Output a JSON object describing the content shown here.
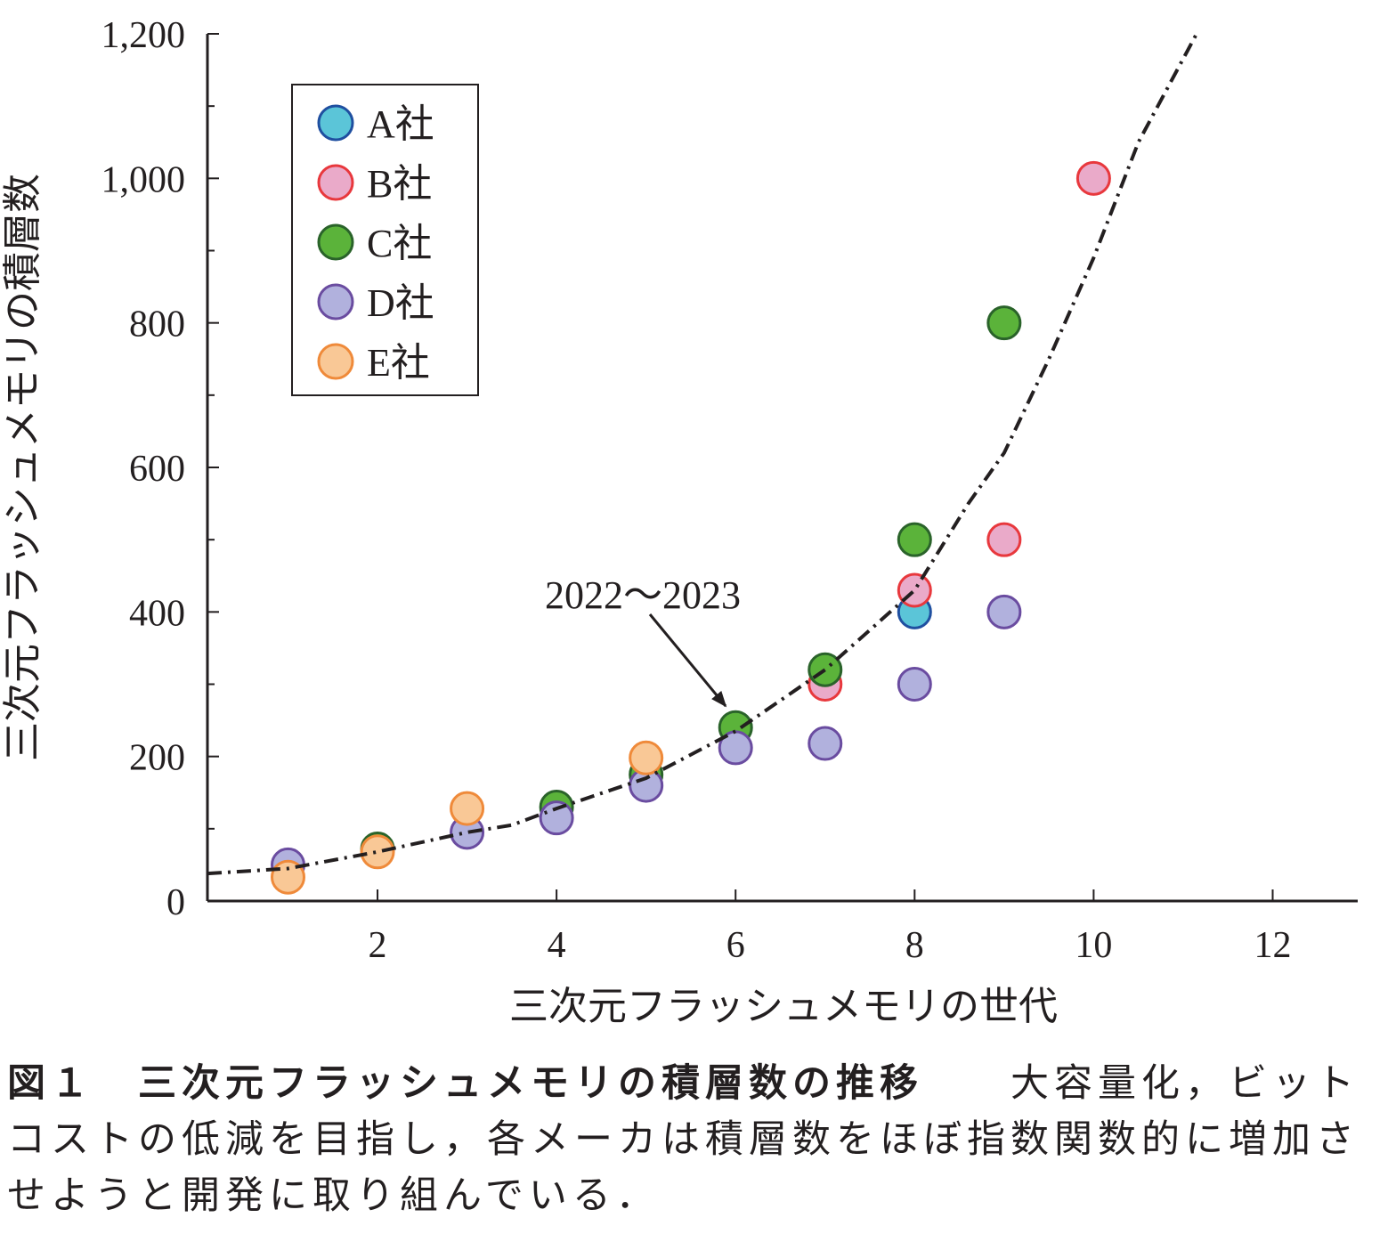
{
  "chart_data": {
    "type": "scatter",
    "xlabel": "三次元フラッシュメモリの世代",
    "ylabel": "三次元フラッシュメモリの積層数",
    "xlim": [
      0.1,
      12.95
    ],
    "ylim": [
      0,
      1200
    ],
    "xticks": [
      2,
      4,
      6,
      8,
      10,
      12
    ],
    "yticks": [
      0,
      200,
      400,
      600,
      800,
      {
        "value": 1000,
        "label": "1,000"
      },
      {
        "value": 1200,
        "label": "1,200"
      }
    ],
    "yminorticks": [
      100,
      300,
      500,
      700,
      900,
      1100
    ],
    "legend": "upper left",
    "series": [
      {
        "name": "A社",
        "color": "#5bc5d8",
        "edgecolor": "#1f4fa0",
        "x": [
          8
        ],
        "values": [
          400
        ]
      },
      {
        "name": "B社",
        "color": "#eaaac9",
        "edgecolor": "#e8383d",
        "x": [
          7,
          8,
          9,
          10
        ],
        "values": [
          300,
          430,
          500,
          1000
        ]
      },
      {
        "name": "C社",
        "color": "#5bb33a",
        "edgecolor": "#2a632a",
        "x": [
          2,
          4,
          5,
          6,
          7,
          8,
          9
        ],
        "values": [
          72,
          130,
          175,
          240,
          320,
          500,
          800
        ]
      },
      {
        "name": "D社",
        "color": "#b1b1dd",
        "edgecolor": "#6a4ca0",
        "x": [
          1,
          3,
          4,
          5,
          6,
          7,
          8,
          9
        ],
        "values": [
          50,
          95,
          115,
          160,
          212,
          218,
          300,
          400
        ]
      },
      {
        "name": "E社",
        "color": "#f9c896",
        "edgecolor": "#ef8a3a",
        "x": [
          1,
          2,
          3,
          5
        ],
        "values": [
          33,
          68,
          128,
          198
        ]
      }
    ],
    "trend": {
      "x": [
        0.1,
        1,
        2,
        3,
        3.5,
        4,
        5,
        6,
        7,
        8,
        8.6,
        9,
        9.5,
        10,
        10.5,
        11.15
      ],
      "y": [
        38,
        45,
        68,
        95,
        105,
        128,
        170,
        235,
        320,
        430,
        550,
        620,
        750,
        890,
        1050,
        1200
      ]
    },
    "annotation": "2022〜2023",
    "caption_title": "図１　三次元フラッシュメモリの積層数の推移",
    "caption_text": "大容量化，ビットコストの低減を目指し，各メーカは積層数をほぼ指数関数的に増加させようと開発に取り組んでいる．"
  }
}
